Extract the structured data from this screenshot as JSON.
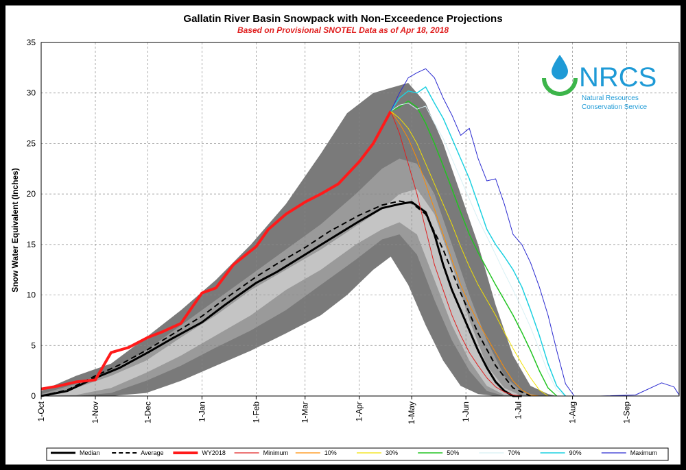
{
  "chart_data": {
    "type": "line",
    "title": "Gallatin River Basin Snowpack with Non-Exceedence Projections",
    "subtitle": "Based on Provisional SNOTEL Data as of Apr 18, 2018",
    "ylabel": "Snow Water Equivalent (Inches)",
    "ylim": [
      0,
      35
    ],
    "yticks": [
      "0",
      "5",
      "10",
      "15",
      "20",
      "25",
      "30",
      "35"
    ],
    "xlim": [
      0,
      365
    ],
    "xticks": [
      {
        "day": 0,
        "label": "1-Oct"
      },
      {
        "day": 31,
        "label": "1-Nov"
      },
      {
        "day": 61,
        "label": "1-Dec"
      },
      {
        "day": 92,
        "label": "1-Jan"
      },
      {
        "day": 123,
        "label": "1-Feb"
      },
      {
        "day": 151,
        "label": "1-Mar"
      },
      {
        "day": 182,
        "label": "1-Apr"
      },
      {
        "day": 212,
        "label": "1-May"
      },
      {
        "day": 243,
        "label": "1-Jun"
      },
      {
        "day": 273,
        "label": "1-Jul"
      },
      {
        "day": 304,
        "label": "1-Aug"
      },
      {
        "day": 335,
        "label": "1-Sep"
      }
    ],
    "grid": true,
    "legend_position": "bottom",
    "bands": [
      {
        "fill": "#7a7a7a",
        "x": [
          0,
          20,
          40,
          60,
          80,
          100,
          120,
          140,
          160,
          175,
          190,
          200,
          210,
          220,
          230,
          240,
          250,
          260,
          270,
          280,
          290,
          295
        ],
        "upper": [
          0.5,
          2,
          3.2,
          5.8,
          8.5,
          11.5,
          15,
          19,
          24,
          28,
          30,
          30.5,
          31,
          29,
          25,
          20,
          15,
          9,
          4,
          1,
          0.2,
          0
        ],
        "lower": [
          0,
          0,
          0,
          0.3,
          1.5,
          3,
          4.5,
          6.2,
          8,
          10,
          12.5,
          13.8,
          11,
          7,
          3.5,
          1,
          0.2,
          0,
          0,
          0,
          0,
          0
        ]
      },
      {
        "fill": "#9a9a9a",
        "x": [
          0,
          20,
          40,
          60,
          80,
          100,
          120,
          140,
          160,
          180,
          195,
          205,
          215,
          225,
          235,
          245,
          255,
          265,
          275,
          285
        ],
        "upper": [
          0.2,
          1.2,
          2.5,
          4.5,
          7,
          9.5,
          12,
          14.5,
          17,
          20,
          22.5,
          23.5,
          23,
          20,
          15,
          10,
          5.5,
          2,
          0.4,
          0
        ],
        "lower": [
          0,
          0,
          0.3,
          1.5,
          3,
          4.8,
          6.5,
          8.5,
          11,
          13.5,
          15.5,
          16,
          14,
          9.5,
          5.5,
          2.5,
          0.5,
          0,
          0,
          0
        ]
      },
      {
        "fill": "#c4c4c4",
        "x": [
          0,
          20,
          40,
          60,
          80,
          100,
          120,
          140,
          160,
          180,
          195,
          205,
          215,
          225,
          235,
          245,
          255,
          265,
          275
        ],
        "upper": [
          0.1,
          0.8,
          2,
          3.5,
          5.8,
          8,
          10.5,
          12.5,
          14.5,
          16.8,
          18.5,
          20,
          20.5,
          18,
          13,
          7.5,
          3,
          0.8,
          0
        ],
        "lower": [
          0,
          0.1,
          0.8,
          2.3,
          4,
          6,
          8,
          10.5,
          12.5,
          15,
          16.5,
          17.2,
          16,
          11.5,
          7,
          3.5,
          1,
          0.1,
          0
        ]
      }
    ],
    "series": [
      {
        "name": "Median",
        "color": "#000000",
        "width": 3,
        "dash": "",
        "x": [
          0,
          15,
          31,
          45,
          61,
          75,
          92,
          105,
          123,
          135,
          151,
          165,
          182,
          195,
          205,
          212,
          220,
          225,
          230,
          235,
          240,
          245,
          250,
          255,
          260,
          265,
          270,
          275
        ],
        "y": [
          0,
          0.5,
          1.8,
          2.8,
          4.3,
          5.7,
          7.3,
          9,
          11.2,
          12.3,
          14,
          15.5,
          17.3,
          18.6,
          19,
          19.2,
          18.2,
          16,
          13,
          10.5,
          8.5,
          6.5,
          4.5,
          2.8,
          1.4,
          0.5,
          0,
          0
        ]
      },
      {
        "name": "Average",
        "color": "#000000",
        "width": 2,
        "dash": "8,5",
        "x": [
          0,
          15,
          31,
          45,
          61,
          75,
          92,
          105,
          123,
          135,
          151,
          165,
          182,
          195,
          205,
          212,
          220,
          230,
          240,
          250,
          260,
          270,
          280
        ],
        "y": [
          0,
          0.6,
          2,
          3.1,
          4.6,
          6.1,
          7.9,
          9.6,
          11.8,
          13.1,
          14.7,
          16.3,
          17.9,
          18.9,
          19.3,
          19.1,
          18,
          14.5,
          10.2,
          6.2,
          3,
          0.8,
          0
        ]
      },
      {
        "name": "WY2018",
        "color": "#ff1a1a",
        "width": 4,
        "dash": "",
        "x": [
          0,
          10,
          20,
          31,
          40,
          50,
          61,
          70,
          80,
          92,
          100,
          110,
          123,
          130,
          140,
          151,
          160,
          170,
          182,
          190,
          200
        ],
        "y": [
          0.7,
          1,
          1.4,
          1.6,
          4.3,
          4.8,
          5.8,
          6.4,
          7.2,
          10.2,
          10.7,
          13,
          14.8,
          16.5,
          18,
          19.2,
          20,
          21,
          23.2,
          25,
          28.2
        ]
      },
      {
        "name": "Minimum",
        "color": "#e02020",
        "width": 1,
        "dash": "",
        "x": [
          200,
          205,
          210,
          215,
          220,
          225,
          230,
          235,
          240,
          245,
          250,
          255,
          260,
          265,
          270,
          275,
          280
        ],
        "y": [
          28.2,
          26,
          23,
          20,
          16.5,
          13,
          10.5,
          8,
          6,
          4.3,
          3,
          1.8,
          0.9,
          0.4,
          0.1,
          0,
          0
        ]
      },
      {
        "name": "10%",
        "color": "#ff8c00",
        "width": 1,
        "dash": "",
        "x": [
          200,
          205,
          210,
          215,
          220,
          225,
          230,
          235,
          240,
          245,
          250,
          255,
          260,
          265,
          270,
          275,
          280,
          285
        ],
        "y": [
          28.2,
          27,
          25.5,
          23.5,
          21,
          18.5,
          16,
          13.5,
          11,
          9,
          7.3,
          5.8,
          4.3,
          2.8,
          1.5,
          0.6,
          0.1,
          0
        ]
      },
      {
        "name": "30%",
        "color": "#f2e000",
        "width": 1,
        "dash": "",
        "x": [
          200,
          205,
          210,
          215,
          220,
          225,
          230,
          235,
          240,
          245,
          250,
          255,
          260,
          265,
          270,
          275,
          280,
          285,
          290
        ],
        "y": [
          28.2,
          27.5,
          26.5,
          25,
          23,
          21,
          19,
          17,
          14.8,
          12.8,
          11,
          9.5,
          8,
          6.3,
          4.7,
          3.2,
          1.8,
          0.6,
          0
        ]
      },
      {
        "name": "50%",
        "color": "#21c421",
        "width": 1.5,
        "dash": "",
        "x": [
          200,
          205,
          210,
          215,
          220,
          225,
          230,
          235,
          240,
          245,
          250,
          255,
          260,
          265,
          270,
          275,
          280,
          285,
          290,
          295
        ],
        "y": [
          28.2,
          28.6,
          29.2,
          28.6,
          27,
          25,
          22.8,
          20.5,
          18.2,
          16,
          14.2,
          12.6,
          11,
          9.5,
          8,
          6.3,
          4.5,
          2.5,
          0.8,
          0
        ]
      },
      {
        "name": "70%",
        "color": "#d8f0f4",
        "width": 1,
        "dash": "",
        "x": [
          200,
          205,
          210,
          215,
          220,
          225,
          230,
          235,
          240,
          245,
          250,
          255,
          260,
          265,
          270,
          275,
          280,
          285,
          290,
          295,
          300
        ],
        "y": [
          28.2,
          28.8,
          29,
          28.4,
          28.7,
          27,
          25.5,
          23.5,
          21.5,
          19.5,
          17.5,
          15.8,
          14,
          12.2,
          10.5,
          8.7,
          6.8,
          4.6,
          2.3,
          0.6,
          0
        ]
      },
      {
        "name": "90%",
        "color": "#1cd0e0",
        "width": 1.5,
        "dash": "",
        "x": [
          200,
          205,
          210,
          215,
          220,
          225,
          230,
          235,
          240,
          245,
          250,
          255,
          260,
          265,
          270,
          275,
          280,
          285,
          290,
          295,
          300
        ],
        "y": [
          28.2,
          29.5,
          30.2,
          30,
          30.6,
          29,
          27.5,
          25.5,
          23.5,
          21.5,
          19,
          16.5,
          15,
          13.8,
          12.5,
          10.8,
          8.5,
          6,
          3.2,
          1,
          0
        ]
      },
      {
        "name": "Maximum",
        "color": "#2a2ad0",
        "width": 1,
        "dash": "",
        "x": [
          200,
          205,
          210,
          215,
          220,
          225,
          230,
          235,
          240,
          245,
          250,
          255,
          260,
          265,
          270,
          275,
          280,
          285,
          290,
          295,
          300,
          305,
          320,
          340,
          355,
          362,
          365
        ],
        "y": [
          28.2,
          30,
          31.5,
          32,
          32.4,
          31.5,
          29.5,
          27.8,
          25.8,
          26.5,
          23.5,
          21.3,
          21.5,
          19,
          16,
          15,
          13.2,
          10.8,
          8,
          4.5,
          1.2,
          0,
          0,
          0.1,
          1.3,
          0.9,
          0.1
        ]
      }
    ]
  },
  "logo": {
    "word": "NRCS",
    "line1": "Natural Resources",
    "line2": "Conservation Service"
  }
}
